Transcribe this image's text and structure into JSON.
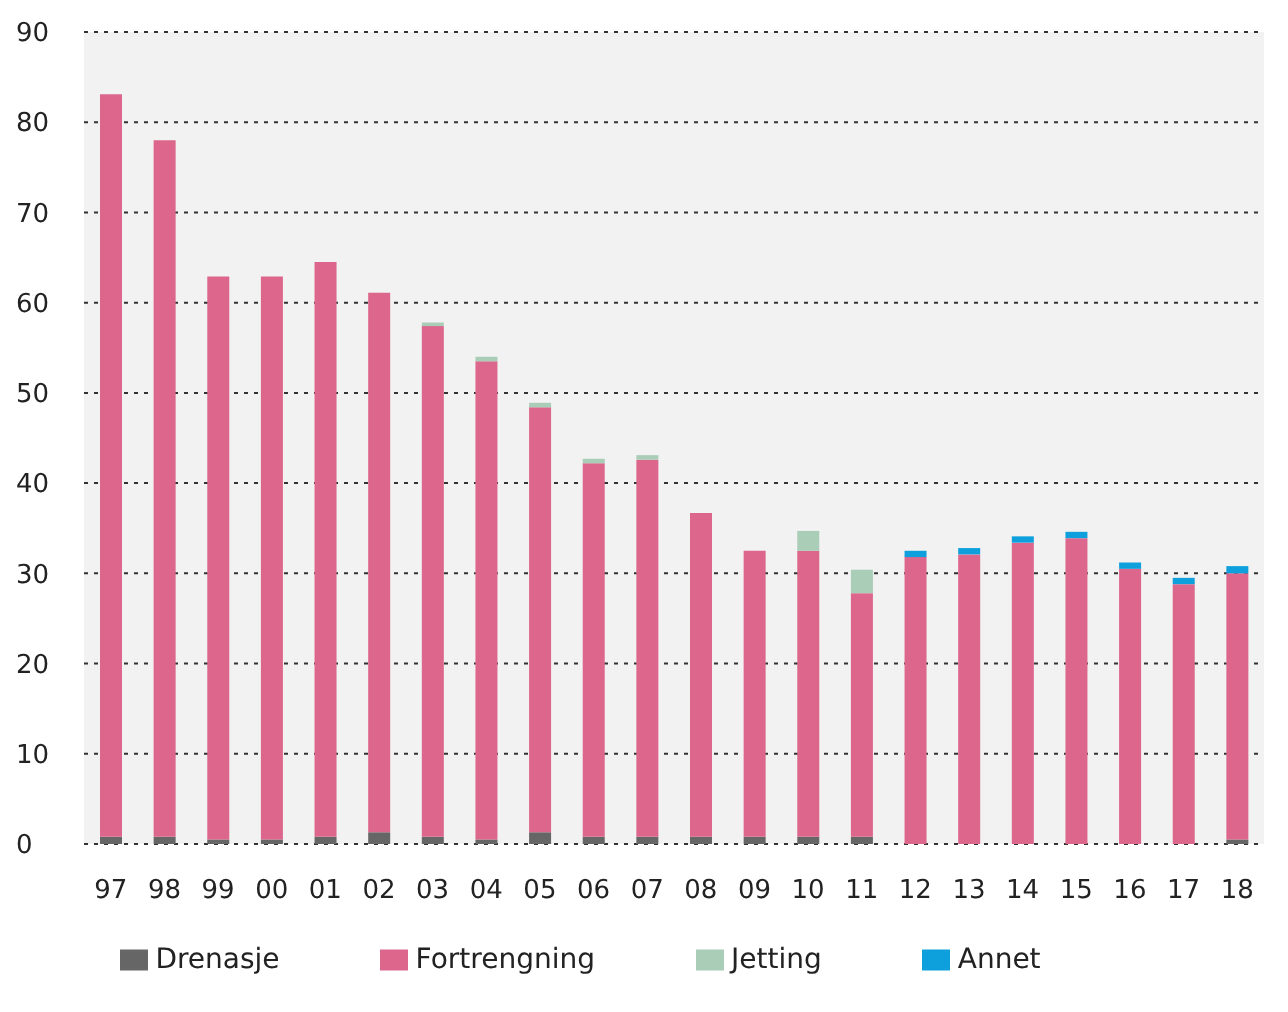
{
  "chart_data": {
    "type": "bar",
    "stacked": true,
    "categories": [
      "97",
      "98",
      "99",
      "00",
      "01",
      "02",
      "03",
      "04",
      "05",
      "06",
      "07",
      "08",
      "09",
      "10",
      "11",
      "12",
      "13",
      "14",
      "15",
      "16",
      "17",
      "18"
    ],
    "series": [
      {
        "name": "Drenasje",
        "color": "#666666",
        "values": [
          0.8,
          0.8,
          0.5,
          0.5,
          0.8,
          1.3,
          0.8,
          0.5,
          1.3,
          0.8,
          0.8,
          0.8,
          0.8,
          0.8,
          0.8,
          0,
          0,
          0,
          0,
          0,
          0,
          0.5
        ]
      },
      {
        "name": "Fortrengning",
        "color": "#dc668c",
        "values": [
          82.3,
          77.2,
          62.4,
          62.4,
          63.7,
          59.8,
          56.6,
          53.0,
          47.1,
          41.4,
          41.8,
          35.9,
          31.7,
          31.7,
          27.0,
          31.8,
          32.1,
          33.4,
          33.9,
          30.5,
          28.8,
          29.5
        ]
      },
      {
        "name": "Jetting",
        "color": "#a9cdb7",
        "values": [
          0,
          0,
          0,
          0,
          0,
          0,
          0.4,
          0.5,
          0.5,
          0.5,
          0.5,
          0,
          0,
          2.2,
          2.6,
          0,
          0,
          0,
          0,
          0,
          0,
          0
        ]
      },
      {
        "name": "Annet",
        "color": "#0da0dc",
        "values": [
          0,
          0,
          0,
          0,
          0,
          0,
          0,
          0,
          0,
          0,
          0,
          0,
          0,
          0,
          0,
          0.7,
          0.7,
          0.7,
          0.7,
          0.7,
          0.7,
          0.8
        ]
      }
    ],
    "ylim": [
      0,
      90
    ],
    "yticks": [
      0,
      10,
      20,
      30,
      40,
      50,
      60,
      70,
      80,
      90
    ],
    "grid": "y",
    "legend": "bottom"
  }
}
